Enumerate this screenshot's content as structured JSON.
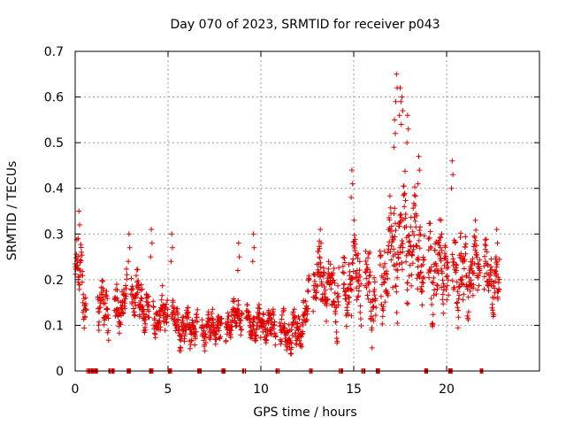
{
  "chart_data": {
    "type": "scatter",
    "title": "Day 070 of 2023, SRMTID for receiver p043",
    "xlabel": "GPS time / hours",
    "ylabel": "SRMTID / TECUs",
    "xlim": [
      0,
      25
    ],
    "ylim": [
      0,
      0.7
    ],
    "grid": true,
    "marker": "+",
    "color": "#e00000",
    "x_ticks": [
      0,
      5,
      10,
      15,
      20
    ],
    "x_tick_labels": [
      "0",
      "5",
      "10",
      "15",
      "20"
    ],
    "y_ticks": [
      0,
      0.1,
      0.2,
      0.3,
      0.4,
      0.5,
      0.6,
      0.7
    ],
    "y_tick_labels": [
      "0",
      "0.1",
      "0.2",
      "0.3",
      "0.4",
      "0.5",
      "0.6",
      "0.7"
    ],
    "series": [
      {
        "name": "SRMTID",
        "trend": {
          "x": [
            0.0,
            0.3,
            0.6,
            1.0,
            1.5,
            2.0,
            2.5,
            3.0,
            3.5,
            4.0,
            4.5,
            5.0,
            5.5,
            6.0,
            6.5,
            7.0,
            7.5,
            8.0,
            8.5,
            9.0,
            9.5,
            10.0,
            10.5,
            11.0,
            11.5,
            12.0,
            12.5,
            13.0,
            13.5,
            14.0,
            14.5,
            15.0,
            15.5,
            16.0,
            16.5,
            17.0,
            17.5,
            18.0,
            18.5,
            19.0,
            19.5,
            20.0,
            20.5,
            21.0,
            21.5,
            22.0,
            22.5,
            22.9
          ],
          "y": [
            0.2,
            0.22,
            0.15,
            0.15,
            0.14,
            0.12,
            0.15,
            0.18,
            0.15,
            0.13,
            0.12,
            0.13,
            0.1,
            0.09,
            0.1,
            0.09,
            0.09,
            0.1,
            0.11,
            0.13,
            0.1,
            0.1,
            0.1,
            0.09,
            0.08,
            0.09,
            0.13,
            0.2,
            0.2,
            0.16,
            0.17,
            0.22,
            0.19,
            0.17,
            0.19,
            0.25,
            0.28,
            0.3,
            0.26,
            0.23,
            0.22,
            0.24,
            0.22,
            0.2,
            0.23,
            0.22,
            0.2,
            0.2
          ]
        },
        "spread": {
          "x": [
            0.0,
            2.5,
            5.0,
            8.0,
            10.0,
            12.0,
            13.0,
            14.0,
            15.0,
            16.0,
            17.0,
            17.5,
            18.0,
            18.5,
            19.0,
            20.0,
            21.0,
            22.0,
            22.9
          ],
          "y": [
            0.06,
            0.05,
            0.04,
            0.035,
            0.035,
            0.04,
            0.06,
            0.07,
            0.08,
            0.08,
            0.1,
            0.12,
            0.12,
            0.1,
            0.09,
            0.09,
            0.08,
            0.06,
            0.06
          ]
        },
        "spikes": [
          {
            "x": 0.2,
            "y": 0.35
          },
          {
            "x": 2.9,
            "y": 0.3
          },
          {
            "x": 4.1,
            "y": 0.31
          },
          {
            "x": 5.2,
            "y": 0.3
          },
          {
            "x": 8.8,
            "y": 0.28
          },
          {
            "x": 9.6,
            "y": 0.3
          },
          {
            "x": 13.2,
            "y": 0.31
          },
          {
            "x": 14.9,
            "y": 0.44
          },
          {
            "x": 17.3,
            "y": 0.65
          },
          {
            "x": 17.5,
            "y": 0.62
          },
          {
            "x": 17.6,
            "y": 0.6
          },
          {
            "x": 17.9,
            "y": 0.56
          },
          {
            "x": 17.2,
            "y": 0.55
          },
          {
            "x": 18.5,
            "y": 0.47
          },
          {
            "x": 20.3,
            "y": 0.46
          },
          {
            "x": 19.7,
            "y": 0.33
          },
          {
            "x": 22.7,
            "y": 0.31
          }
        ],
        "zero_gaps_hours": [
          [
            0.6,
            1.2
          ],
          [
            1.8,
            2.1
          ],
          [
            2.8,
            3.0
          ],
          [
            4.0,
            4.2
          ],
          [
            5.0,
            5.2
          ],
          [
            6.6,
            6.8
          ],
          [
            7.9,
            8.1
          ],
          [
            9.0,
            9.2
          ],
          [
            10.8,
            11.0
          ],
          [
            12.6,
            12.8
          ],
          [
            14.2,
            14.4
          ],
          [
            15.4,
            15.6
          ],
          [
            16.2,
            16.4
          ],
          [
            18.8,
            19.0
          ],
          [
            20.1,
            20.3
          ],
          [
            21.8,
            22.0
          ]
        ],
        "x_start": 0.0,
        "x_end": 22.85,
        "x_step": 0.0125,
        "y_floor": 0.03
      }
    ]
  }
}
